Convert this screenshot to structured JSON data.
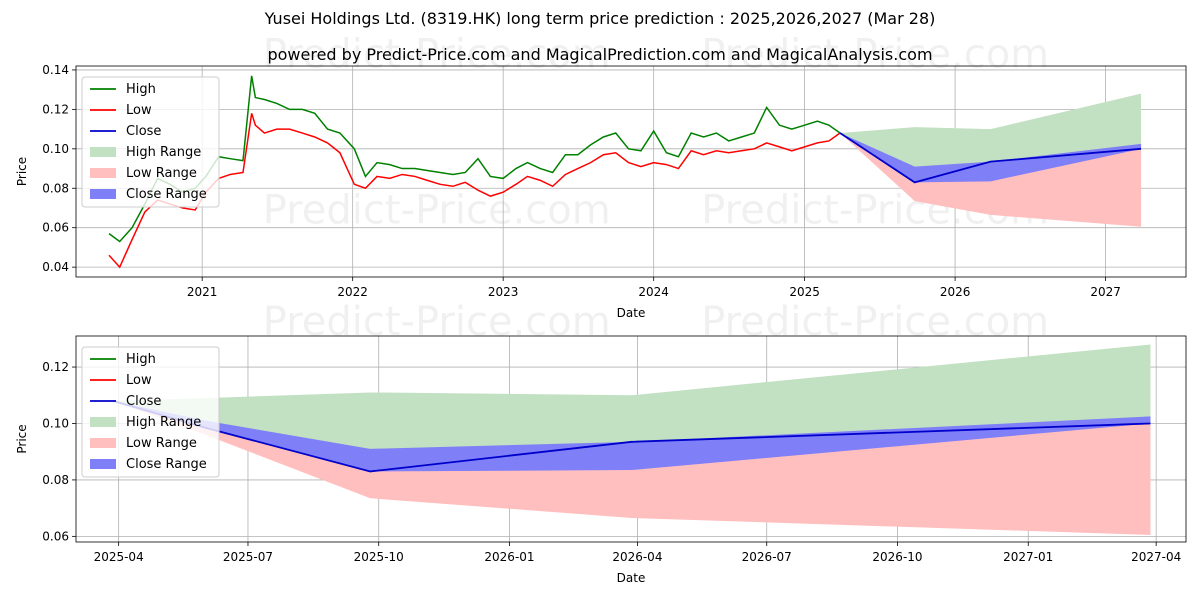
{
  "title": "Yusei Holdings Ltd. (8319.HK) long term price prediction : 2025,2026,2027 (Mar 28)",
  "subtitle": "powered by Predict-Price.com and MagicalPrediction.com and MagicalAnalysis.com",
  "watermark": "Predict-Price.com",
  "colors": {
    "high": "#008000",
    "low": "#ff0000",
    "close": "#0000cc",
    "high_range": "#c2e0c2",
    "low_range": "#ffbfbf",
    "close_range": "#7f7ff7"
  },
  "chart_data": [
    {
      "type": "line",
      "xlabel": "Date",
      "ylabel": "Price",
      "xlim": [
        "2020-03-01",
        "2027-07-15"
      ],
      "ylim": [
        0.035,
        0.142
      ],
      "grid": true,
      "legend_position": "top-left",
      "x_ticks": [
        "2021",
        "2022",
        "2023",
        "2024",
        "2025",
        "2026",
        "2027"
      ],
      "y_ticks": [
        "0.04",
        "0.06",
        "0.08",
        "0.10",
        "0.12",
        "0.14"
      ],
      "legend": [
        "High",
        "Low",
        "Close",
        "High Range",
        "Low Range",
        "Close Range"
      ],
      "history": {
        "x": [
          "2020-05-20",
          "2020-06-15",
          "2020-07-15",
          "2020-08-15",
          "2020-09-15",
          "2020-10-15",
          "2020-11-15",
          "2020-12-15",
          "2021-01-10",
          "2021-02-10",
          "2021-03-10",
          "2021-04-10",
          "2021-05-01",
          "2021-05-10",
          "2021-06-01",
          "2021-07-01",
          "2021-08-01",
          "2021-09-01",
          "2021-10-01",
          "2021-11-01",
          "2021-12-01",
          "2022-01-05",
          "2022-02-01",
          "2022-03-01",
          "2022-04-01",
          "2022-05-01",
          "2022-06-01",
          "2022-07-01",
          "2022-08-01",
          "2022-09-01",
          "2022-10-01",
          "2022-11-01",
          "2022-12-01",
          "2023-01-01",
          "2023-02-01",
          "2023-03-01",
          "2023-04-01",
          "2023-05-01",
          "2023-06-01",
          "2023-07-01",
          "2023-08-01",
          "2023-09-01",
          "2023-10-01",
          "2023-11-01",
          "2023-12-01",
          "2024-01-01",
          "2024-02-01",
          "2024-03-01",
          "2024-04-01",
          "2024-05-01",
          "2024-06-01",
          "2024-07-01",
          "2024-08-01",
          "2024-09-01",
          "2024-10-01",
          "2024-11-01",
          "2024-12-01",
          "2025-01-01",
          "2025-02-01",
          "2025-03-01",
          "2025-03-28"
        ],
        "high": [
          0.057,
          0.053,
          0.06,
          0.072,
          0.085,
          0.082,
          0.078,
          0.08,
          0.086,
          0.096,
          0.095,
          0.094,
          0.137,
          0.126,
          0.125,
          0.123,
          0.12,
          0.12,
          0.118,
          0.11,
          0.108,
          0.1,
          0.086,
          0.093,
          0.092,
          0.09,
          0.09,
          0.089,
          0.088,
          0.087,
          0.088,
          0.095,
          0.086,
          0.085,
          0.09,
          0.093,
          0.09,
          0.088,
          0.097,
          0.097,
          0.102,
          0.106,
          0.108,
          0.1,
          0.099,
          0.109,
          0.098,
          0.096,
          0.108,
          0.106,
          0.108,
          0.104,
          0.106,
          0.108,
          0.121,
          0.112,
          0.11,
          0.112,
          0.114,
          0.112,
          0.108
        ],
        "low": [
          0.046,
          0.04,
          0.054,
          0.068,
          0.074,
          0.072,
          0.07,
          0.069,
          0.078,
          0.085,
          0.087,
          0.088,
          0.118,
          0.112,
          0.108,
          0.11,
          0.11,
          0.108,
          0.106,
          0.103,
          0.098,
          0.082,
          0.08,
          0.086,
          0.085,
          0.087,
          0.086,
          0.084,
          0.082,
          0.081,
          0.083,
          0.079,
          0.076,
          0.078,
          0.082,
          0.086,
          0.084,
          0.081,
          0.087,
          0.09,
          0.093,
          0.097,
          0.098,
          0.093,
          0.091,
          0.093,
          0.092,
          0.09,
          0.099,
          0.097,
          0.099,
          0.098,
          0.099,
          0.1,
          0.103,
          0.101,
          0.099,
          0.101,
          0.103,
          0.104,
          0.108
        ]
      },
      "forecast": {
        "x": [
          "2025-03-28",
          "2025-09-25",
          "2026-03-28",
          "2027-03-28"
        ],
        "close": [
          0.108,
          0.083,
          0.0935,
          0.1
        ],
        "high_range_upper": [
          0.108,
          0.111,
          0.11,
          0.128
        ],
        "low_range_lower": [
          0.108,
          0.0735,
          0.0665,
          0.0605
        ],
        "close_range_upper": [
          0.108,
          0.091,
          0.0935,
          0.1025
        ],
        "close_range_lower": [
          0.108,
          0.083,
          0.0835,
          0.1
        ]
      }
    },
    {
      "type": "line",
      "xlabel": "Date",
      "ylabel": "Price",
      "xlim": [
        "2025-03-02",
        "2027-04-22"
      ],
      "ylim": [
        0.058,
        0.131
      ],
      "grid": true,
      "legend_position": "top-left",
      "x_ticks": [
        "2025-04",
        "2025-07",
        "2025-10",
        "2026-01",
        "2026-04",
        "2026-07",
        "2026-10",
        "2027-01",
        "2027-04"
      ],
      "y_ticks": [
        "0.06",
        "0.08",
        "0.10",
        "0.12"
      ],
      "legend": [
        "High",
        "Low",
        "Close",
        "High Range",
        "Low Range",
        "Close Range"
      ],
      "forecast": {
        "x": [
          "2025-03-28",
          "2025-06-01",
          "2025-09-25",
          "2026-03-28",
          "2027-03-28"
        ],
        "close": [
          0.108,
          0.0985,
          0.083,
          0.0935,
          0.1
        ],
        "high_range_upper": [
          0.108,
          0.109,
          0.111,
          0.11,
          0.128
        ],
        "low_range_lower": [
          0.108,
          0.096,
          0.0735,
          0.0665,
          0.0605
        ],
        "close_range_upper": [
          0.108,
          0.101,
          0.091,
          0.0935,
          0.1025
        ],
        "close_range_lower": [
          0.108,
          0.0985,
          0.083,
          0.0835,
          0.1
        ]
      }
    }
  ]
}
